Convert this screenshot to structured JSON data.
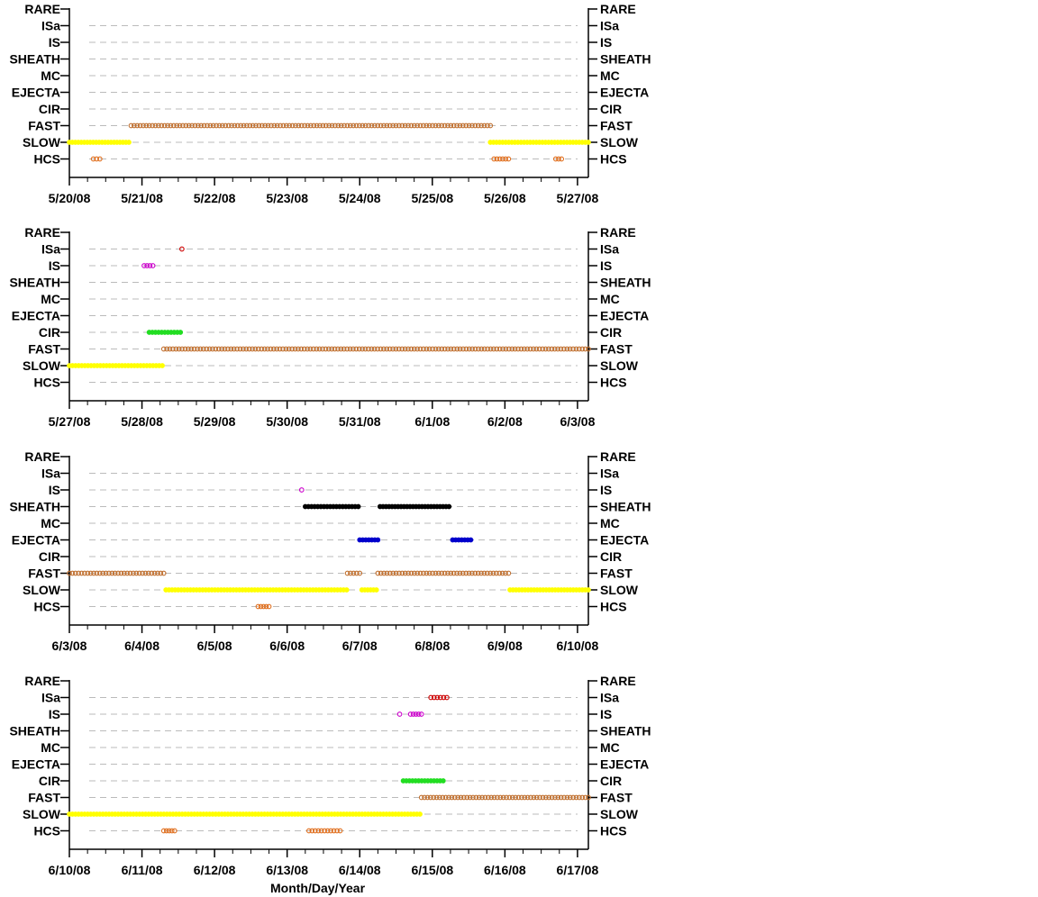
{
  "xlabel": "Month/Day/Year",
  "categories": [
    "RARE",
    "ISa",
    "IS",
    "SHEATH",
    "MC",
    "EJECTA",
    "CIR",
    "FAST",
    "SLOW",
    "HCS"
  ],
  "colors": {
    "ISa": "#cc0000",
    "IS": "#cc00cc",
    "SHEATH": "#000000",
    "EJECTA": "#0000cc",
    "CIR": "#22dd22",
    "FAST": "#c07030",
    "SLOW": "#ffff00",
    "HCS": "#e07020",
    "grid": "#bbbbbb"
  },
  "chart_data": [
    {
      "type": "scatter",
      "x_ticks": [
        "5/20/08",
        "5/21/08",
        "5/22/08",
        "5/23/08",
        "5/24/08",
        "5/25/08",
        "5/26/08",
        "5/27/08"
      ],
      "xlim": [
        0,
        7.15
      ],
      "grid": true,
      "segments": [
        {
          "category": "SLOW",
          "x": [
            0,
            0.82
          ]
        },
        {
          "category": "FAST",
          "x": [
            0.85,
            5.8
          ]
        },
        {
          "category": "SLOW",
          "x": [
            5.8,
            7.15
          ]
        },
        {
          "category": "HCS",
          "x": [
            0.33,
            0.42
          ]
        },
        {
          "category": "HCS",
          "x": [
            5.85,
            6.05
          ]
        },
        {
          "category": "HCS",
          "x": [
            6.7,
            6.78
          ]
        }
      ]
    },
    {
      "type": "scatter",
      "x_ticks": [
        "5/27/08",
        "5/28/08",
        "5/29/08",
        "5/30/08",
        "5/31/08",
        "6/1/08",
        "6/2/08",
        "6/3/08"
      ],
      "xlim": [
        0,
        7.15
      ],
      "grid": true,
      "segments": [
        {
          "category": "SLOW",
          "x": [
            0,
            1.28
          ]
        },
        {
          "category": "FAST",
          "x": [
            1.3,
            7.15
          ]
        },
        {
          "category": "CIR",
          "x": [
            1.1,
            1.53
          ]
        },
        {
          "category": "IS",
          "x": [
            1.03,
            1.15
          ]
        },
        {
          "category": "ISa",
          "x": [
            1.55,
            1.55
          ]
        }
      ]
    },
    {
      "type": "scatter",
      "x_ticks": [
        "6/3/08",
        "6/4/08",
        "6/5/08",
        "6/6/08",
        "6/7/08",
        "6/8/08",
        "6/9/08",
        "6/10/08"
      ],
      "xlim": [
        0,
        7.15
      ],
      "grid": true,
      "segments": [
        {
          "category": "FAST",
          "x": [
            0,
            1.3
          ]
        },
        {
          "category": "SLOW",
          "x": [
            1.33,
            3.82
          ]
        },
        {
          "category": "HCS",
          "x": [
            2.6,
            2.75
          ]
        },
        {
          "category": "IS",
          "x": [
            3.2,
            3.2
          ]
        },
        {
          "category": "SHEATH",
          "x": [
            3.25,
            3.98
          ]
        },
        {
          "category": "FAST",
          "x": [
            3.83,
            4.0
          ]
        },
        {
          "category": "EJECTA",
          "x": [
            4.0,
            4.25
          ]
        },
        {
          "category": "SLOW",
          "x": [
            4.03,
            4.23
          ]
        },
        {
          "category": "SHEATH",
          "x": [
            4.28,
            5.23
          ]
        },
        {
          "category": "FAST",
          "x": [
            4.25,
            6.05
          ]
        },
        {
          "category": "EJECTA",
          "x": [
            5.28,
            5.53
          ]
        },
        {
          "category": "SLOW",
          "x": [
            6.07,
            7.15
          ]
        }
      ]
    },
    {
      "type": "scatter",
      "x_ticks": [
        "6/10/08",
        "6/11/08",
        "6/12/08",
        "6/13/08",
        "6/14/08",
        "6/15/08",
        "6/16/08",
        "6/17/08"
      ],
      "xlim": [
        0,
        7.15
      ],
      "grid": true,
      "segments": [
        {
          "category": "SLOW",
          "x": [
            0,
            4.83
          ]
        },
        {
          "category": "HCS",
          "x": [
            1.3,
            1.45
          ]
        },
        {
          "category": "HCS",
          "x": [
            3.3,
            3.73
          ]
        },
        {
          "category": "IS",
          "x": [
            4.55,
            4.55
          ]
        },
        {
          "category": "IS",
          "x": [
            4.7,
            4.85
          ]
        },
        {
          "category": "CIR",
          "x": [
            4.6,
            5.15
          ]
        },
        {
          "category": "ISa",
          "x": [
            4.98,
            5.2
          ]
        },
        {
          "category": "FAST",
          "x": [
            4.85,
            7.15
          ]
        }
      ]
    }
  ]
}
